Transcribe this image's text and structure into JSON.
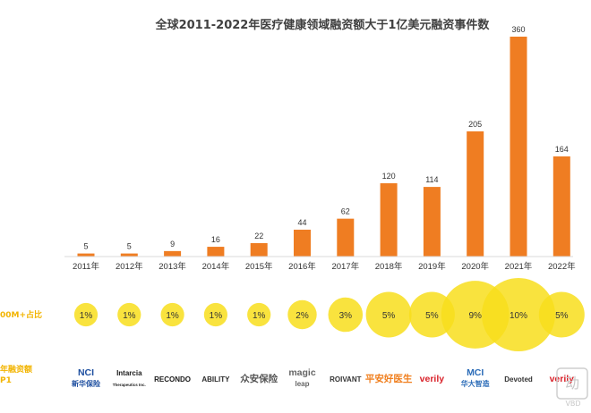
{
  "chart_data": {
    "type": "bar",
    "title": "全球2011-2022年医疗健康领域融资额大于1亿美元融资事件数",
    "categories": [
      "2011年",
      "2012年",
      "2013年",
      "2014年",
      "2015年",
      "2016年",
      "2017年",
      "2018年",
      "2019年",
      "2020年",
      "2021年",
      "2022年"
    ],
    "values": [
      5,
      5,
      9,
      16,
      22,
      44,
      62,
      120,
      114,
      205,
      360,
      164
    ],
    "ylim": [
      0,
      360
    ],
    "grid": false,
    "bar_color": "#ef7d22",
    "share_row": {
      "label": "00M+占比",
      "values_percent": [
        1,
        1,
        1,
        1,
        1,
        2,
        3,
        5,
        5,
        9,
        10,
        5
      ],
      "labels": [
        "1%",
        "1%",
        "1%",
        "1%",
        "1%",
        "2%",
        "3%",
        "5%",
        "5%",
        "9%",
        "10%",
        "5%"
      ],
      "color": "#f8de1c"
    },
    "logo_row": {
      "label_line1": "年融资额",
      "label_line2": "P1",
      "logos": [
        {
          "line1": "NCI",
          "line2": "新华保险",
          "color": "#1e4fa0"
        },
        {
          "line1": "Intarcia",
          "line2": "Therapeutics Inc.",
          "color": "#1a1a1a"
        },
        {
          "line1": "RECONDO",
          "line2": "",
          "color": "#1a1a1a"
        },
        {
          "line1": "ABILITY",
          "line2": "",
          "color": "#2a2a2a"
        },
        {
          "line1": "众安保险",
          "line2": "",
          "color": "#555555"
        },
        {
          "line1": "magic",
          "line2": "leap",
          "color": "#666666"
        },
        {
          "line1": "ROIVANT",
          "line2": "",
          "color": "#333333"
        },
        {
          "line1": "平安好医生",
          "line2": "",
          "color": "#f07f1e"
        },
        {
          "line1": "verily",
          "line2": "",
          "color": "#d9222a"
        },
        {
          "line1": "MCI",
          "line2": "华大智造",
          "color": "#2b6cb8"
        },
        {
          "line1": "Devoted",
          "line2": "",
          "color": "#333333"
        },
        {
          "line1": "verily",
          "line2": "",
          "color": "#d9222a"
        }
      ]
    }
  },
  "watermark": {
    "line1": "动",
    "line2": "VBD"
  }
}
